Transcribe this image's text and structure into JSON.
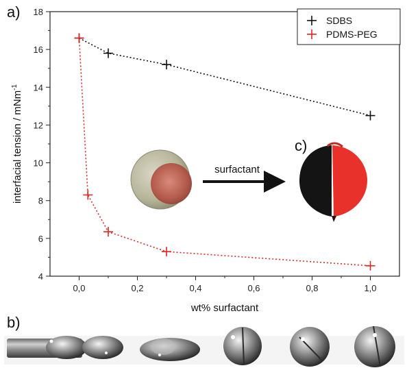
{
  "panels": {
    "a": "a)",
    "b": "b)",
    "c": "c)"
  },
  "inset": {
    "arrow_label": "surfactant"
  },
  "colors": {
    "black_series": "#111111",
    "red_series": "#e8231d"
  },
  "chart_data": {
    "type": "scatter",
    "title": "",
    "xlabel": "wt% surfactant",
    "ylabel": "interfacial tension / mNm",
    "ylabel_superscript": "-1",
    "xlim": [
      -0.1,
      1.1
    ],
    "ylim": [
      4,
      18
    ],
    "xticks": [
      "0,0",
      "0,2",
      "0,4",
      "0,6",
      "0,8",
      "1,0"
    ],
    "xtick_values": [
      0.0,
      0.2,
      0.4,
      0.6,
      0.8,
      1.0
    ],
    "yticks": [
      "4",
      "6",
      "8",
      "10",
      "12",
      "14",
      "16",
      "18"
    ],
    "ytick_values": [
      4,
      6,
      8,
      10,
      12,
      14,
      16,
      18
    ],
    "grid": false,
    "legend_position": "top-right",
    "series": [
      {
        "name": "SDBS",
        "color": "#111111",
        "x": [
          0.0,
          0.1,
          0.3,
          1.0
        ],
        "y": [
          16.6,
          15.8,
          15.2,
          12.5
        ]
      },
      {
        "name": "PDMS-PEG",
        "color": "#e8231d",
        "x": [
          0.0,
          0.03,
          0.1,
          0.3,
          1.0
        ],
        "y": [
          16.6,
          8.3,
          6.35,
          5.3,
          4.55
        ]
      }
    ]
  }
}
